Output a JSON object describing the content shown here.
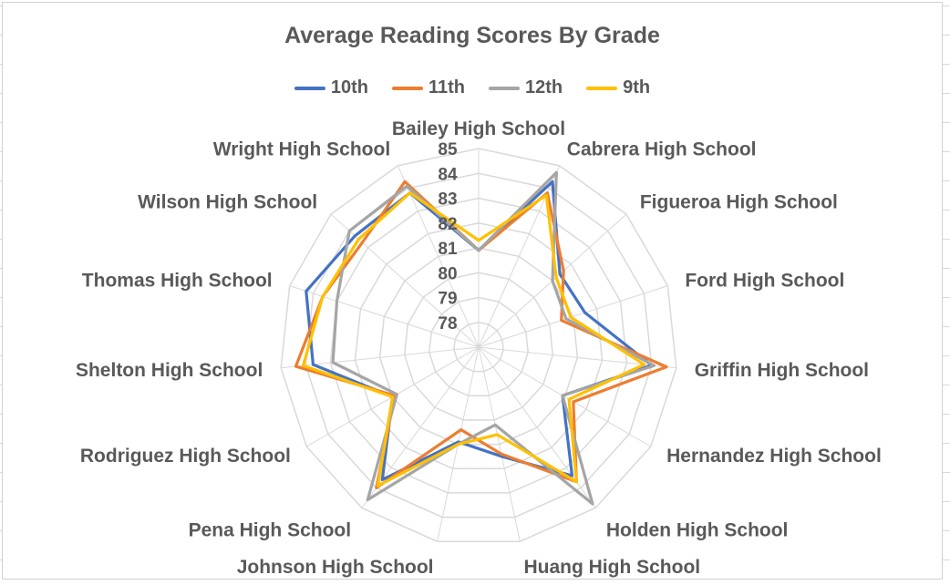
{
  "chart_data": {
    "type": "radar",
    "title": "Average Reading Scores By Grade",
    "categories": [
      "Bailey High School",
      "Cabrera High School",
      "Figueroa High School",
      "Ford High School",
      "Griffin High School",
      "Hernandez High School",
      "Holden High School",
      "Huang High School",
      "Johnson High School",
      "Pena High School",
      "Rodriguez High School",
      "Shelton High School",
      "Thomas High School",
      "Wilson High School",
      "Wright High School"
    ],
    "r_ticks": [
      78,
      79,
      80,
      81,
      82,
      83,
      84,
      85
    ],
    "r_range": [
      77,
      85
    ],
    "legend_position": "top",
    "series": [
      {
        "name": "10th",
        "color": "#4472c4",
        "values": [
          80.9,
          84.3,
          81.4,
          81.5,
          84.0,
          80.9,
          83.4,
          81.5,
          80.9,
          83.6,
          81.0,
          83.7,
          84.3,
          83.7,
          83.8
        ]
      },
      {
        "name": "11th",
        "color": "#ed7d31",
        "values": [
          80.9,
          83.8,
          81.6,
          80.5,
          84.6,
          81.4,
          83.7,
          81.4,
          80.4,
          84.0,
          80.9,
          84.4,
          83.6,
          83.3,
          84.3
        ]
      },
      {
        "name": "12th",
        "color": "#a5a5a5",
        "values": [
          80.9,
          84.7,
          81.0,
          80.7,
          84.1,
          80.9,
          84.8,
          80.2,
          81.0,
          84.6,
          80.8,
          82.9,
          83.0,
          84.0,
          84.1
        ]
      },
      {
        "name": "9th",
        "color": "#ffc000",
        "values": [
          81.3,
          83.7,
          81.2,
          80.9,
          83.7,
          81.2,
          83.7,
          80.6,
          81.0,
          83.9,
          81.0,
          84.1,
          83.6,
          83.5,
          83.8
        ]
      }
    ]
  }
}
